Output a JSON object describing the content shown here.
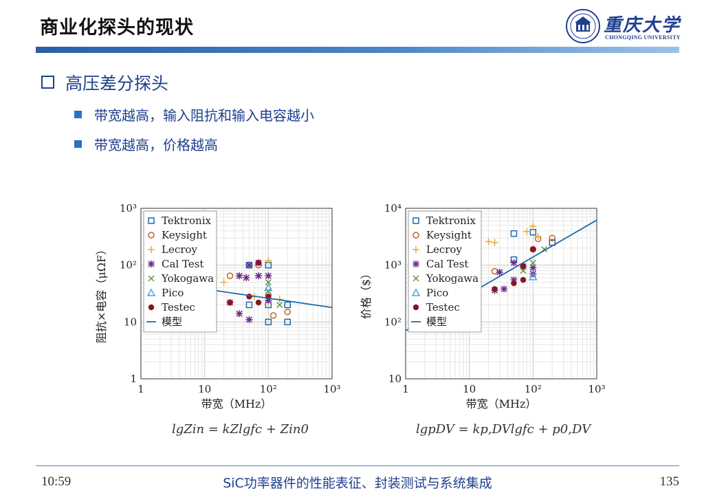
{
  "header": {
    "title": "商业化探头的现状",
    "logo_text": "重庆大学",
    "logo_sub": "CHONGQING UNIVERSITY"
  },
  "section": {
    "heading": "高压差分探头",
    "bullets": [
      "带宽越高，输入阻抗和输入电容越小",
      "带宽越高，价格越高"
    ]
  },
  "colors": {
    "accent": "#1f3f8f",
    "Tektronix": "#1a6aa8",
    "Keysight": "#c0622a",
    "Lecroy": "#e8a83a",
    "Cal Test": "#6a2c8a",
    "Yokogawa": "#5d9a3a",
    "Pico": "#3fa8d8",
    "Testec": "#8a1420",
    "模型": "#1a6aa8"
  },
  "chart_data": [
    {
      "type": "scatter",
      "log_x": true,
      "log_y": true,
      "xlabel": "带宽（MHz）",
      "ylabel": "阻抗×电容（μΩF）",
      "xlim": [
        1,
        1000
      ],
      "ylim": [
        1,
        1000
      ],
      "x_ticks": [
        "1",
        "10",
        "10²",
        "10³"
      ],
      "y_ticks": [
        "1",
        "10",
        "10²",
        "10³"
      ],
      "grid": true,
      "legend_position": "top-left",
      "series": [
        {
          "name": "Tektronix",
          "marker": "square",
          "points": [
            [
              50,
              100
            ],
            [
              100,
              100
            ],
            [
              50,
              20
            ],
            [
              100,
              10
            ],
            [
              200,
              10
            ],
            [
              200,
              20
            ],
            [
              100,
              20
            ]
          ]
        },
        {
          "name": "Keysight",
          "marker": "circle",
          "points": [
            [
              25,
              65
            ],
            [
              70,
              100
            ],
            [
              100,
              30
            ],
            [
              120,
              13
            ],
            [
              200,
              15
            ]
          ]
        },
        {
          "name": "Lecroy",
          "marker": "plus",
          "points": [
            [
              20,
              50
            ],
            [
              100,
              120
            ],
            [
              60,
              28
            ],
            [
              100,
              22
            ],
            [
              150,
              25
            ],
            [
              25,
              22
            ]
          ]
        },
        {
          "name": "Cal Test",
          "marker": "star",
          "points": [
            [
              25,
              22
            ],
            [
              35,
              65
            ],
            [
              45,
              60
            ],
            [
              35,
              14
            ],
            [
              50,
              11
            ],
            [
              50,
              100
            ],
            [
              70,
              110
            ],
            [
              100,
              65
            ],
            [
              70,
              65
            ],
            [
              100,
              24
            ]
          ]
        },
        {
          "name": "Yokogawa",
          "marker": "x",
          "points": [
            [
              100,
              50
            ],
            [
              100,
              35
            ],
            [
              150,
              20
            ]
          ]
        },
        {
          "name": "Pico",
          "marker": "triangle",
          "points": [
            [
              100,
              40
            ]
          ]
        },
        {
          "name": "Testec",
          "marker": "dot",
          "points": [
            [
              25,
              22
            ],
            [
              50,
              28
            ],
            [
              70,
              110
            ],
            [
              70,
              22
            ],
            [
              100,
              28
            ]
          ]
        },
        {
          "name": "模型",
          "marker": "line",
          "points": [
            [
              10,
              38
            ],
            [
              1000,
              18
            ]
          ]
        }
      ],
      "caption": "lgZin = kZlgfc + Zin0"
    },
    {
      "type": "scatter",
      "log_x": true,
      "log_y": true,
      "xlabel": "带宽（MHz）",
      "ylabel": "价格（$）",
      "xlim": [
        1,
        1000
      ],
      "ylim": [
        10,
        10000
      ],
      "x_ticks": [
        "1",
        "10",
        "10²",
        "10³"
      ],
      "y_ticks": [
        "10",
        "10²",
        "10³",
        "10⁴"
      ],
      "grid": true,
      "legend_position": "top-left",
      "series": [
        {
          "name": "Tektronix",
          "marker": "square",
          "points": [
            [
              50,
              3600
            ],
            [
              100,
              3800
            ],
            [
              50,
              1250
            ],
            [
              200,
              2500
            ]
          ]
        },
        {
          "name": "Keysight",
          "marker": "circle",
          "points": [
            [
              25,
              780
            ],
            [
              100,
              1900
            ],
            [
              120,
              2900
            ],
            [
              200,
              3000
            ]
          ]
        },
        {
          "name": "Lecroy",
          "marker": "plus",
          "points": [
            [
              20,
              2600
            ],
            [
              25,
              2500
            ],
            [
              80,
              3900
            ],
            [
              100,
              4800
            ],
            [
              120,
              3200
            ]
          ]
        },
        {
          "name": "Cal Test",
          "marker": "star",
          "points": [
            [
              25,
              360
            ],
            [
              35,
              380
            ],
            [
              50,
              550
            ],
            [
              50,
              1100
            ],
            [
              70,
              950
            ],
            [
              100,
              700
            ],
            [
              100,
              900
            ],
            [
              30,
              750
            ]
          ]
        },
        {
          "name": "Yokogawa",
          "marker": "x",
          "points": [
            [
              70,
              800
            ],
            [
              100,
              1100
            ],
            [
              150,
              1900
            ]
          ]
        },
        {
          "name": "Pico",
          "marker": "triangle",
          "points": [
            [
              100,
              620
            ]
          ]
        },
        {
          "name": "Testec",
          "marker": "dot",
          "points": [
            [
              25,
              380
            ],
            [
              50,
              480
            ],
            [
              70,
              550
            ],
            [
              70,
              960
            ],
            [
              100,
              1900
            ]
          ]
        },
        {
          "name": "模型",
          "marker": "line",
          "points": [
            [
              1,
              70
            ],
            [
              1000,
              6200
            ]
          ]
        }
      ],
      "caption": "lgpDV = kp,DVlgfc + p0,DV"
    }
  ],
  "footer": {
    "time": "10:59",
    "course": "SiC功率器件的性能表征、封装测试与系统集成",
    "page": "135"
  }
}
